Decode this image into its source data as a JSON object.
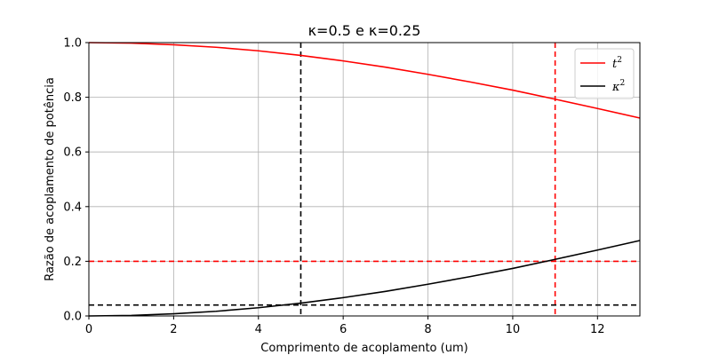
{
  "chart_data": {
    "type": "line",
    "title": "κ=0.5 e κ=0.25",
    "xlabel": "Comprimento de acoplamento (um)",
    "ylabel": "Razão de acoplamento de potência",
    "xlim": [
      0,
      13
    ],
    "ylim": [
      0,
      1.0
    ],
    "x_ticks": [
      0,
      2,
      4,
      6,
      8,
      10,
      12
    ],
    "y_ticks": [
      0.0,
      0.2,
      0.4,
      0.6,
      0.8,
      1.0
    ],
    "x_tick_labels": [
      "0",
      "2",
      "4",
      "6",
      "8",
      "10",
      "12"
    ],
    "y_tick_labels": [
      "0.0",
      "0.2",
      "0.4",
      "0.6",
      "0.8",
      "1.0"
    ],
    "grid": true,
    "legend_position": "top-right",
    "series": [
      {
        "name": "t²",
        "legend_base": "t",
        "legend_sup": "2",
        "color": "#ff0000",
        "x": [
          0,
          1,
          2,
          3,
          4,
          5,
          6,
          7,
          8,
          9,
          10,
          11,
          12,
          13
        ],
        "y": [
          1.0,
          0.998,
          0.992,
          0.983,
          0.97,
          0.953,
          0.933,
          0.91,
          0.884,
          0.856,
          0.826,
          0.793,
          0.759,
          0.724
        ]
      },
      {
        "name": "κ²",
        "legend_base": "κ",
        "legend_sup": "2",
        "color": "#000000",
        "x": [
          0,
          1,
          2,
          3,
          4,
          5,
          6,
          7,
          8,
          9,
          10,
          11,
          12,
          13
        ],
        "y": [
          0.0,
          0.002,
          0.008,
          0.017,
          0.03,
          0.047,
          0.067,
          0.09,
          0.116,
          0.144,
          0.174,
          0.207,
          0.241,
          0.276
        ]
      }
    ],
    "reference_lines": [
      {
        "orientation": "vertical",
        "value": 5,
        "color": "#000000",
        "style": "dashed"
      },
      {
        "orientation": "vertical",
        "value": 11,
        "color": "#ff0000",
        "style": "dashed"
      },
      {
        "orientation": "horizontal",
        "value": 0.2,
        "color": "#ff0000",
        "style": "dashed"
      },
      {
        "orientation": "horizontal",
        "value": 0.04,
        "color": "#000000",
        "style": "dashed"
      }
    ]
  }
}
